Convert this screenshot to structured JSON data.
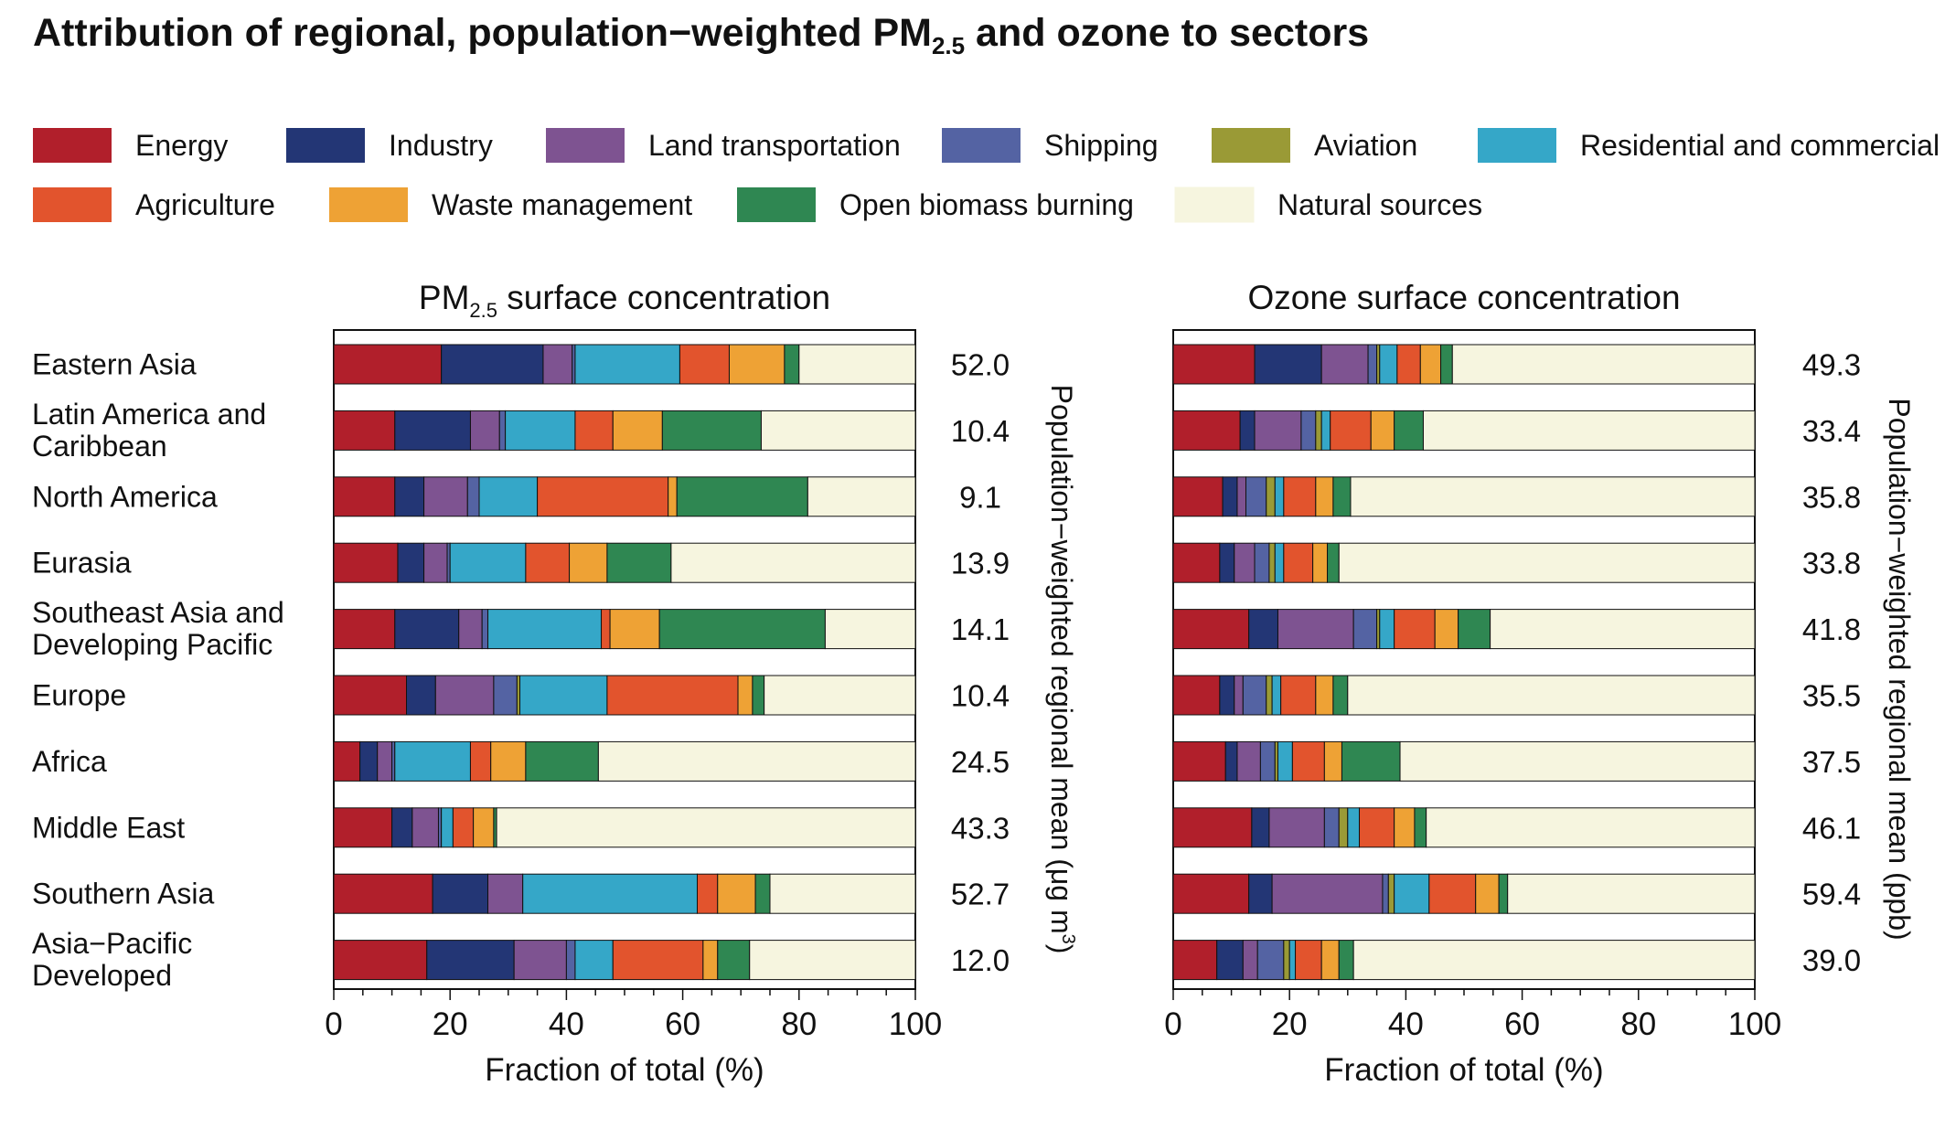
{
  "title": {
    "prefix": "Attribution of regional, population−weighted PM",
    "subscript": "2.5",
    "suffix": " and ozone to sectors"
  },
  "legend": [
    {
      "name": "Energy",
      "color": "#b11f2b"
    },
    {
      "name": "Industry",
      "color": "#233675"
    },
    {
      "name": "Land transportation",
      "color": "#7e5391"
    },
    {
      "name": "Shipping",
      "color": "#5463a3"
    },
    {
      "name": "Aviation",
      "color": "#9a9a36"
    },
    {
      "name": "Residential and commercial",
      "color": "#35a7c8"
    },
    {
      "name": "Agriculture",
      "color": "#e2542d"
    },
    {
      "name": "Waste management",
      "color": "#eea235"
    },
    {
      "name": "Open biomass burning",
      "color": "#2f8752"
    },
    {
      "name": "Natural sources",
      "color": "#f6f5df"
    }
  ],
  "regions": [
    [
      "Eastern Asia"
    ],
    [
      "Latin America and",
      "Caribbean"
    ],
    [
      "North America"
    ],
    [
      "Eurasia"
    ],
    [
      "Southeast Asia and",
      "Developing Pacific"
    ],
    [
      "Europe"
    ],
    [
      "Africa"
    ],
    [
      "Middle East"
    ],
    [
      "Southern Asia"
    ],
    [
      "Asia−Pacific",
      "Developed"
    ]
  ],
  "chart_data": [
    {
      "type": "bar",
      "orientation": "horizontal",
      "stacked": true,
      "title": "PM",
      "title_subscript": "2.5",
      "title_suffix": " surface concentration",
      "xlabel": "Fraction of total (%)",
      "xlim": [
        0,
        100
      ],
      "xticks": [
        "0",
        "20",
        "40",
        "60",
        "80",
        "100"
      ],
      "right_label": "Population−weighted regional mean (μg m",
      "right_label_superscript": "3",
      "right_label_suffix": ")",
      "means": [
        "52.0",
        "10.4",
        "9.1",
        "13.9",
        "14.1",
        "10.4",
        "24.5",
        "43.3",
        "52.7",
        "12.0"
      ],
      "series": [
        {
          "name": "Energy",
          "values": [
            18.5,
            10.5,
            10.5,
            11.0,
            10.5,
            12.5,
            4.5,
            10.0,
            17.0,
            16.0
          ]
        },
        {
          "name": "Industry",
          "values": [
            17.5,
            13.0,
            5.0,
            4.5,
            11.0,
            5.0,
            3.0,
            3.5,
            9.5,
            15.0
          ]
        },
        {
          "name": "Land transportation",
          "values": [
            5.0,
            5.0,
            7.5,
            4.0,
            4.0,
            10.0,
            2.5,
            4.5,
            6.0,
            9.0
          ]
        },
        {
          "name": "Shipping",
          "values": [
            0.5,
            1.0,
            2.0,
            0.5,
            1.0,
            4.0,
            0.5,
            0.5,
            0.0,
            1.5
          ]
        },
        {
          "name": "Aviation",
          "values": [
            0.0,
            0.0,
            0.0,
            0.0,
            0.0,
            0.5,
            0.0,
            0.0,
            0.0,
            0.0
          ]
        },
        {
          "name": "Residential and commercial",
          "values": [
            18.0,
            12.0,
            10.0,
            13.0,
            19.5,
            15.0,
            13.0,
            2.0,
            30.0,
            6.5
          ]
        },
        {
          "name": "Agriculture",
          "values": [
            8.5,
            6.5,
            22.5,
            7.5,
            1.5,
            22.5,
            3.5,
            3.5,
            3.5,
            15.5
          ]
        },
        {
          "name": "Waste management",
          "values": [
            9.5,
            8.5,
            1.5,
            6.5,
            8.5,
            2.5,
            6.0,
            3.5,
            6.5,
            2.5
          ]
        },
        {
          "name": "Open biomass burning",
          "values": [
            2.5,
            17.0,
            22.5,
            11.0,
            28.5,
            2.0,
            12.5,
            0.5,
            2.5,
            5.5
          ]
        },
        {
          "name": "Natural sources",
          "values": [
            20.0,
            26.5,
            18.5,
            42.0,
            15.5,
            26.0,
            54.5,
            72.0,
            25.0,
            28.5
          ]
        }
      ]
    },
    {
      "type": "bar",
      "orientation": "horizontal",
      "stacked": true,
      "title": "Ozone surface concentration",
      "xlabel": "Fraction of total (%)",
      "xlim": [
        0,
        100
      ],
      "xticks": [
        "0",
        "20",
        "40",
        "60",
        "80",
        "100"
      ],
      "right_label": "Population−weighted regional mean (ppb)",
      "means": [
        "49.3",
        "33.4",
        "35.8",
        "33.8",
        "41.8",
        "35.5",
        "37.5",
        "46.1",
        "59.4",
        "39.0"
      ],
      "series": [
        {
          "name": "Energy",
          "values": [
            14.0,
            11.5,
            8.5,
            8.0,
            13.0,
            8.0,
            9.0,
            13.5,
            13.0,
            7.5
          ]
        },
        {
          "name": "Industry",
          "values": [
            11.5,
            2.5,
            2.5,
            2.5,
            5.0,
            2.5,
            2.0,
            3.0,
            4.0,
            4.5
          ]
        },
        {
          "name": "Land transportation",
          "values": [
            8.0,
            8.0,
            1.5,
            3.5,
            13.0,
            1.5,
            4.0,
            9.5,
            19.0,
            2.5
          ]
        },
        {
          "name": "Shipping",
          "values": [
            1.5,
            2.5,
            3.5,
            2.5,
            4.0,
            4.0,
            2.5,
            2.5,
            1.0,
            4.5
          ]
        },
        {
          "name": "Aviation",
          "values": [
            0.5,
            1.0,
            1.5,
            1.0,
            0.5,
            1.0,
            0.5,
            1.5,
            1.0,
            1.0
          ]
        },
        {
          "name": "Residential and commercial",
          "values": [
            3.0,
            1.5,
            1.5,
            1.5,
            2.5,
            1.5,
            2.5,
            2.0,
            6.0,
            1.0
          ]
        },
        {
          "name": "Agriculture",
          "values": [
            4.0,
            7.0,
            5.5,
            5.0,
            7.0,
            6.0,
            5.5,
            6.0,
            8.0,
            4.5
          ]
        },
        {
          "name": "Waste management",
          "values": [
            3.5,
            4.0,
            3.0,
            2.5,
            4.0,
            3.0,
            3.0,
            3.5,
            4.0,
            3.0
          ]
        },
        {
          "name": "Open biomass burning",
          "values": [
            2.0,
            5.0,
            3.0,
            2.0,
            5.5,
            2.5,
            10.0,
            2.0,
            1.5,
            2.5
          ]
        },
        {
          "name": "Natural sources",
          "values": [
            52.0,
            57.0,
            69.5,
            71.5,
            45.5,
            70.0,
            61.0,
            56.5,
            42.5,
            69.0
          ]
        }
      ]
    }
  ]
}
